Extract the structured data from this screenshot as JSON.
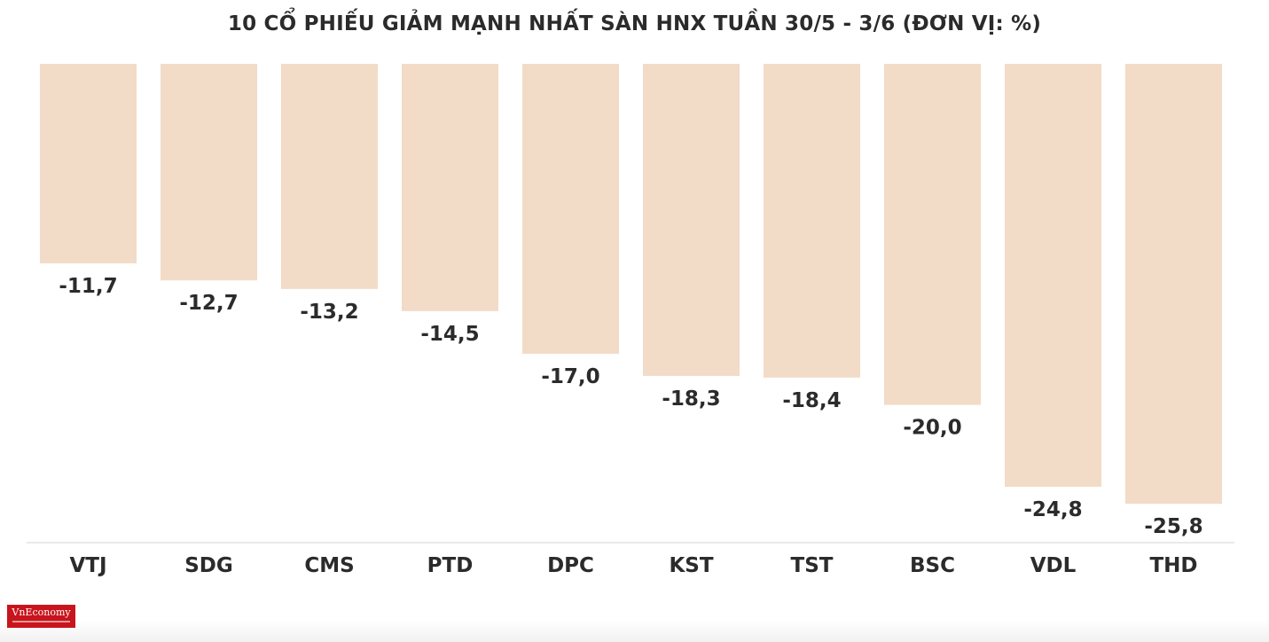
{
  "chart_data": {
    "type": "bar",
    "title": "10 CỔ PHIẾU GIẢM MẠNH NHẤT SÀN HNX TUẦN 30/5 - 3/6 (ĐƠN VỊ: %)",
    "categories": [
      "VTJ",
      "SDG",
      "CMS",
      "PTD",
      "DPC",
      "KST",
      "TST",
      "BSC",
      "VDL",
      "THD"
    ],
    "values": [
      -11.7,
      -12.7,
      -13.2,
      -14.5,
      -17.0,
      -18.3,
      -18.4,
      -20.0,
      -24.8,
      -25.8
    ],
    "value_labels": [
      "-11,7",
      "-12,7",
      "-13,2",
      "-14,5",
      "-17,0",
      "-18,3",
      "-18,4",
      "-20,0",
      "-24,8",
      "-25,8"
    ],
    "xlabel": "",
    "ylabel": "",
    "ylim": [
      -28,
      0
    ],
    "grid": false,
    "legend": "none",
    "bar_color": "#f2dbc7",
    "label_color": "#2b2b2b"
  },
  "logo": {
    "text": "VnEconomy",
    "color": "#c8141c"
  }
}
